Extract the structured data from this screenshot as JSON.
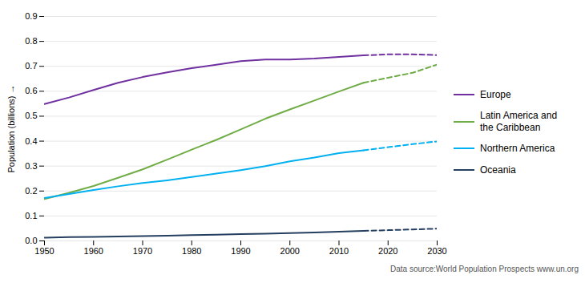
{
  "chart_data": {
    "type": "line",
    "ylabel": "Population (billions)",
    "caption": "Data source:World Population Prospects www.un.org",
    "x": [
      1950,
      1955,
      1960,
      1965,
      1970,
      1975,
      1980,
      1985,
      1990,
      1995,
      2000,
      2005,
      2010,
      2015,
      2020,
      2025,
      2030
    ],
    "xlim": [
      1950,
      2030
    ],
    "xticks": [
      1950,
      1960,
      1970,
      1980,
      1990,
      2000,
      2010,
      2020,
      2030
    ],
    "ylim": [
      0,
      0.9
    ],
    "yticks": [
      {
        "value": 0,
        "label": "0.0"
      },
      0.1,
      0.2,
      0.3,
      0.4,
      0.5,
      0.6,
      0.7,
      0.8,
      0.9
    ],
    "grid": true,
    "legend": "right",
    "series": [
      {
        "name": "Europe",
        "color": "#7030A0",
        "line_style": "solid",
        "values": [
          0.549,
          0.575,
          0.605,
          0.634,
          0.657,
          0.676,
          0.693,
          0.706,
          0.721,
          0.727,
          0.727,
          0.731,
          0.738,
          0.744,
          null,
          null,
          null
        ]
      },
      {
        "name": "Europe",
        "color": "#7030A0",
        "line_style": "dashed",
        "values": [
          null,
          null,
          null,
          null,
          null,
          null,
          null,
          null,
          null,
          null,
          null,
          null,
          null,
          0.744,
          0.748,
          0.748,
          0.745
        ]
      },
      {
        "name": "Latin America and\nthe Caribbean",
        "color": "#70AD47",
        "line_style": "solid",
        "values": [
          0.168,
          0.193,
          0.22,
          0.253,
          0.287,
          0.326,
          0.366,
          0.405,
          0.447,
          0.49,
          0.527,
          0.563,
          0.599,
          0.634,
          null,
          null,
          null
        ]
      },
      {
        "name": "Latin America and\nthe Caribbean",
        "color": "#70AD47",
        "line_style": "dashed",
        "values": [
          null,
          null,
          null,
          null,
          null,
          null,
          null,
          null,
          null,
          null,
          null,
          null,
          null,
          0.634,
          0.654,
          0.674,
          0.707
        ]
      },
      {
        "name": "Northern America",
        "color": "#00B0F0",
        "line_style": "solid",
        "values": [
          0.172,
          0.188,
          0.204,
          0.219,
          0.232,
          0.243,
          0.256,
          0.27,
          0.284,
          0.3,
          0.319,
          0.334,
          0.352,
          0.363,
          null,
          null,
          null
        ]
      },
      {
        "name": "Northern America",
        "color": "#00B0F0",
        "line_style": "dashed",
        "values": [
          null,
          null,
          null,
          null,
          null,
          null,
          null,
          null,
          null,
          null,
          null,
          null,
          null,
          0.363,
          0.376,
          0.388,
          0.399
        ]
      },
      {
        "name": "Oceania",
        "color": "#243F60",
        "line_style": "solid",
        "values": [
          0.013,
          0.015,
          0.016,
          0.018,
          0.019,
          0.021,
          0.023,
          0.025,
          0.027,
          0.029,
          0.031,
          0.034,
          0.037,
          0.04,
          null,
          null,
          null
        ]
      },
      {
        "name": "Oceania",
        "color": "#243F60",
        "line_style": "dashed",
        "values": [
          null,
          null,
          null,
          null,
          null,
          null,
          null,
          null,
          null,
          null,
          null,
          null,
          null,
          0.04,
          0.043,
          0.046,
          0.049
        ]
      }
    ]
  }
}
